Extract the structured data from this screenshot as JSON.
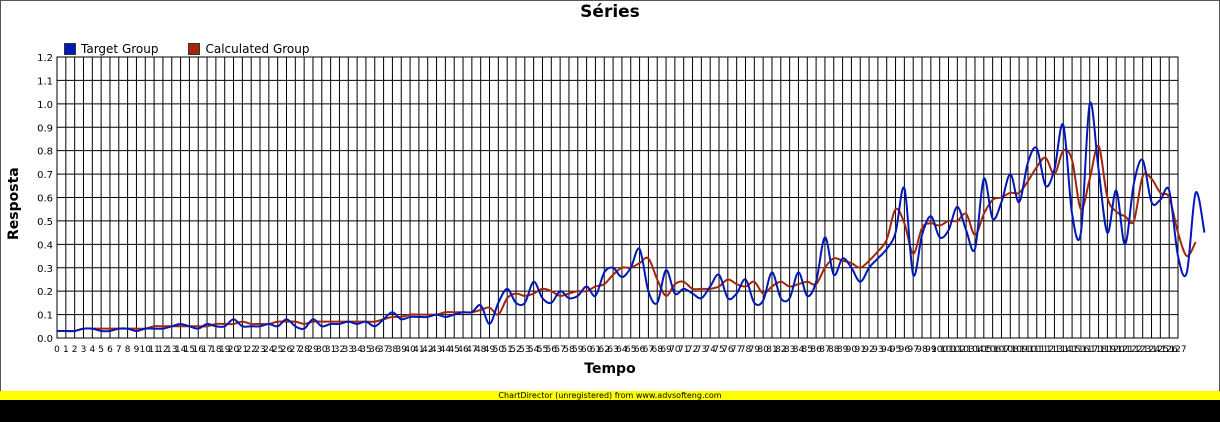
{
  "chart_data": {
    "type": "line",
    "title": "Séries",
    "xlabel": "Tempo",
    "ylabel": "Resposta",
    "ylim": [
      0,
      1.2
    ],
    "yticks": [
      "0.0",
      "0.1",
      "0.2",
      "0.3",
      "0.4",
      "0.5",
      "0.6",
      "0.7",
      "0.8",
      "0.9",
      "1.0",
      "1.1",
      "1.2"
    ],
    "x_range": [
      0,
      127
    ],
    "grid": true,
    "legend_position": "top-left",
    "series": [
      {
        "name": "Target Group",
        "color": "#0018b8",
        "values": [
          0.03,
          0.03,
          0.03,
          0.04,
          0.04,
          0.03,
          0.03,
          0.04,
          0.04,
          0.03,
          0.04,
          0.04,
          0.04,
          0.05,
          0.06,
          0.05,
          0.04,
          0.06,
          0.05,
          0.05,
          0.08,
          0.05,
          0.05,
          0.05,
          0.06,
          0.05,
          0.08,
          0.05,
          0.04,
          0.08,
          0.05,
          0.06,
          0.06,
          0.07,
          0.06,
          0.07,
          0.05,
          0.08,
          0.11,
          0.08,
          0.09,
          0.09,
          0.09,
          0.1,
          0.09,
          0.1,
          0.11,
          0.11,
          0.14,
          0.06,
          0.15,
          0.21,
          0.15,
          0.15,
          0.24,
          0.17,
          0.15,
          0.2,
          0.17,
          0.18,
          0.22,
          0.18,
          0.28,
          0.3,
          0.26,
          0.3,
          0.38,
          0.2,
          0.15,
          0.29,
          0.19,
          0.21,
          0.19,
          0.17,
          0.22,
          0.27,
          0.17,
          0.19,
          0.25,
          0.15,
          0.16,
          0.28,
          0.17,
          0.17,
          0.28,
          0.18,
          0.24,
          0.43,
          0.27,
          0.34,
          0.3,
          0.24,
          0.3,
          0.34,
          0.38,
          0.45,
          0.64,
          0.27,
          0.44,
          0.52,
          0.43,
          0.46,
          0.56,
          0.46,
          0.38,
          0.68,
          0.51,
          0.58,
          0.7,
          0.58,
          0.75,
          0.81,
          0.65,
          0.72,
          0.91,
          0.53,
          0.45,
          1.0,
          0.72,
          0.45,
          0.63,
          0.4,
          0.66,
          0.76,
          0.58,
          0.59,
          0.63,
          0.35,
          0.28,
          0.62,
          0.45
        ]
      },
      {
        "name": "Calculated Group",
        "color": "#a4260c",
        "values": [
          0.03,
          0.03,
          0.03,
          0.04,
          0.04,
          0.04,
          0.04,
          0.04,
          0.04,
          0.04,
          0.04,
          0.05,
          0.05,
          0.05,
          0.05,
          0.05,
          0.05,
          0.05,
          0.06,
          0.06,
          0.06,
          0.07,
          0.06,
          0.06,
          0.06,
          0.07,
          0.07,
          0.07,
          0.06,
          0.07,
          0.07,
          0.07,
          0.07,
          0.07,
          0.07,
          0.07,
          0.07,
          0.08,
          0.09,
          0.09,
          0.1,
          0.1,
          0.1,
          0.1,
          0.11,
          0.11,
          0.11,
          0.11,
          0.12,
          0.13,
          0.1,
          0.17,
          0.19,
          0.18,
          0.19,
          0.21,
          0.2,
          0.18,
          0.19,
          0.2,
          0.2,
          0.22,
          0.23,
          0.27,
          0.3,
          0.3,
          0.32,
          0.34,
          0.25,
          0.18,
          0.23,
          0.24,
          0.21,
          0.21,
          0.21,
          0.22,
          0.25,
          0.23,
          0.22,
          0.24,
          0.19,
          0.22,
          0.24,
          0.22,
          0.23,
          0.24,
          0.23,
          0.3,
          0.34,
          0.33,
          0.32,
          0.3,
          0.33,
          0.37,
          0.42,
          0.55,
          0.49,
          0.36,
          0.47,
          0.49,
          0.48,
          0.5,
          0.5,
          0.53,
          0.44,
          0.53,
          0.59,
          0.6,
          0.62,
          0.62,
          0.67,
          0.73,
          0.77,
          0.7,
          0.8,
          0.76,
          0.55,
          0.68,
          0.82,
          0.6,
          0.54,
          0.52,
          0.5,
          0.69,
          0.68,
          0.62,
          0.6,
          0.45,
          0.35,
          0.41
        ]
      }
    ]
  },
  "footer": {
    "text": "ChartDirector (unregistered) from www.advsofteng.com"
  }
}
